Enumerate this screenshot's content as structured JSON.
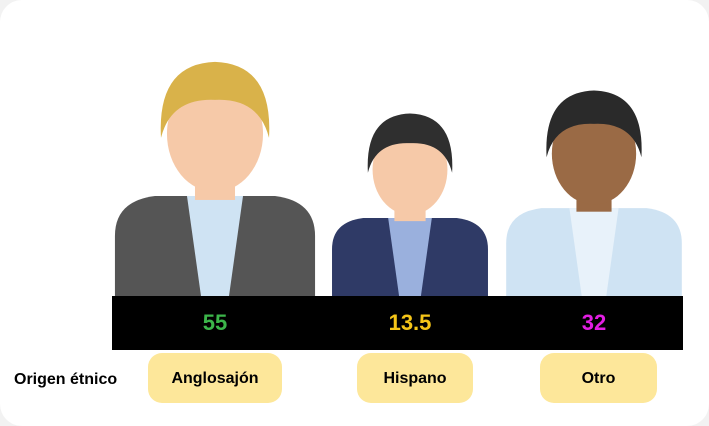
{
  "chart_data": {
    "type": "pictogram",
    "x_label": "Origen étnico",
    "categories": [
      "Anglosajón",
      "Hispano",
      "Otro"
    ],
    "values": [
      55,
      13.5,
      32
    ],
    "value_colors": [
      "#3cb54a",
      "#f5c518",
      "#e21ee2"
    ],
    "hair_colors": [
      "#d9b24a",
      "#2f2f2f",
      "#2a2a2a"
    ],
    "skin_colors": [
      "#f6c9a8",
      "#f6c9a8",
      "#9a6a45"
    ],
    "clothes_colors": [
      "#555555",
      "#2f3a66",
      "#cfe3f3"
    ],
    "shirt_colors": [
      "#cfe3f3",
      "#9ab0dd",
      "#e8f2fa"
    ]
  }
}
